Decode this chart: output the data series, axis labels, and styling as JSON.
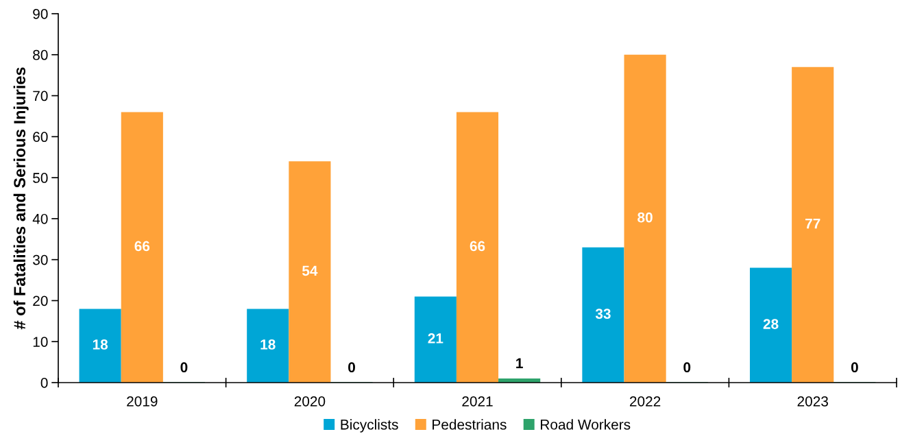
{
  "chart_data": {
    "type": "bar",
    "ylabel": "# of Fatalities and Serious Injuries",
    "categories": [
      "2019",
      "2020",
      "2021",
      "2022",
      "2023"
    ],
    "series": [
      {
        "name": "Bicyclists",
        "color": "#00a6d6",
        "values": [
          18,
          18,
          21,
          33,
          28
        ]
      },
      {
        "name": "Pedestrians",
        "color": "#ffa239",
        "values": [
          66,
          54,
          66,
          80,
          77
        ]
      },
      {
        "name": "Road Workers",
        "color": "#2ea36b",
        "values": [
          0,
          0,
          1,
          0,
          0
        ]
      }
    ],
    "ylim": [
      0,
      90
    ],
    "yticks": [
      0,
      10,
      20,
      30,
      40,
      50,
      60,
      70,
      80,
      90
    ],
    "data_labels": true,
    "grid": false,
    "legend": "bottom"
  }
}
